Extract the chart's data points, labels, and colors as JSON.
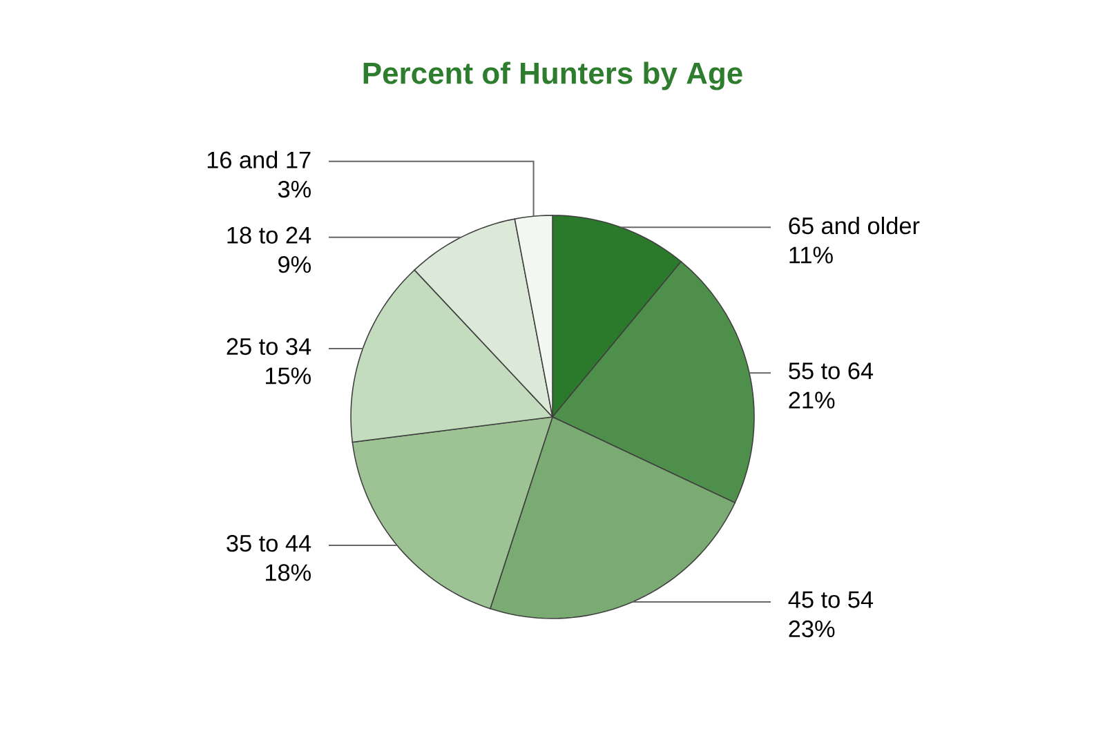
{
  "chart_data": {
    "type": "pie",
    "title": "Percent of Hunters by Age",
    "categories": [
      "65 and older",
      "55 to 64",
      "45 to 54",
      "35 to 44",
      "25 to 34",
      "18 to 24",
      "16 and 17"
    ],
    "values": [
      11,
      21,
      23,
      18,
      15,
      9,
      3
    ],
    "colors": [
      "#2b7a2b",
      "#4f8f4c",
      "#7aab72",
      "#9dc394",
      "#c4dcbe",
      "#dde9d8",
      "#f3f7f1"
    ],
    "value_labels": [
      "11%",
      "21%",
      "23%",
      "18%",
      "15%",
      "9%",
      "3%"
    ]
  }
}
